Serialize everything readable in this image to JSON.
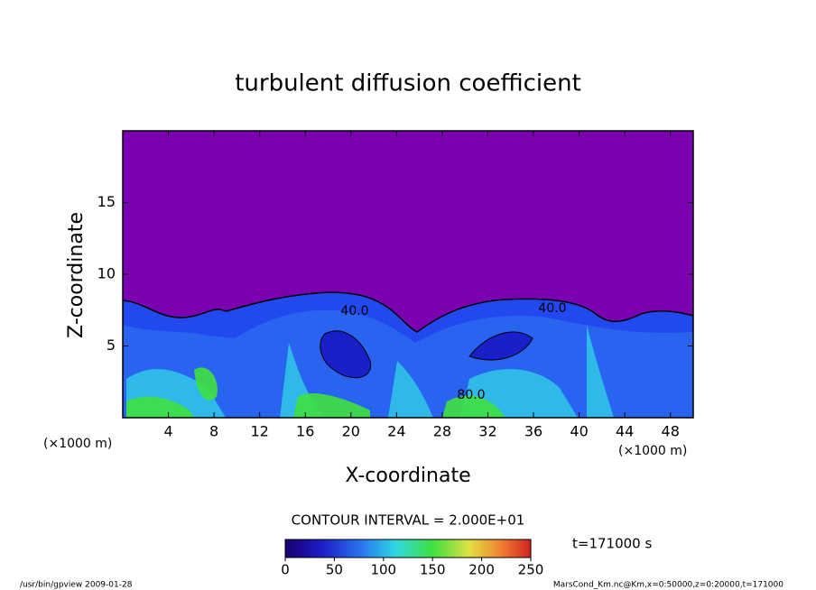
{
  "chart_data": {
    "type": "contour",
    "title": "turbulent diffusion coefficient",
    "x_label": "X-coordinate",
    "y_label": "Z-coordinate",
    "x_unit": "(×1000 m)",
    "y_unit": "(×1000 m)",
    "xlim": [
      0,
      50
    ],
    "xticks": [
      4,
      8,
      12,
      16,
      20,
      24,
      28,
      32,
      36,
      40,
      44,
      48
    ],
    "ylim": [
      0,
      20
    ],
    "yticks": [
      5,
      10,
      15
    ],
    "contour_labels": [
      "40.0",
      "40.0",
      "80.0"
    ],
    "contour_interval": "CONTOUR INTERVAL = 2.000E+01",
    "time": "t=171000 s",
    "colorbar": {
      "lim": [
        0,
        250
      ],
      "ticks": [
        0,
        50,
        100,
        150,
        200,
        250
      ]
    }
  },
  "footer": {
    "left": "/usr/bin/gpview   2009-01-28",
    "right": "MarsCond_Km.nc@Km,x=0:50000,z=0:20000,t=171000"
  }
}
